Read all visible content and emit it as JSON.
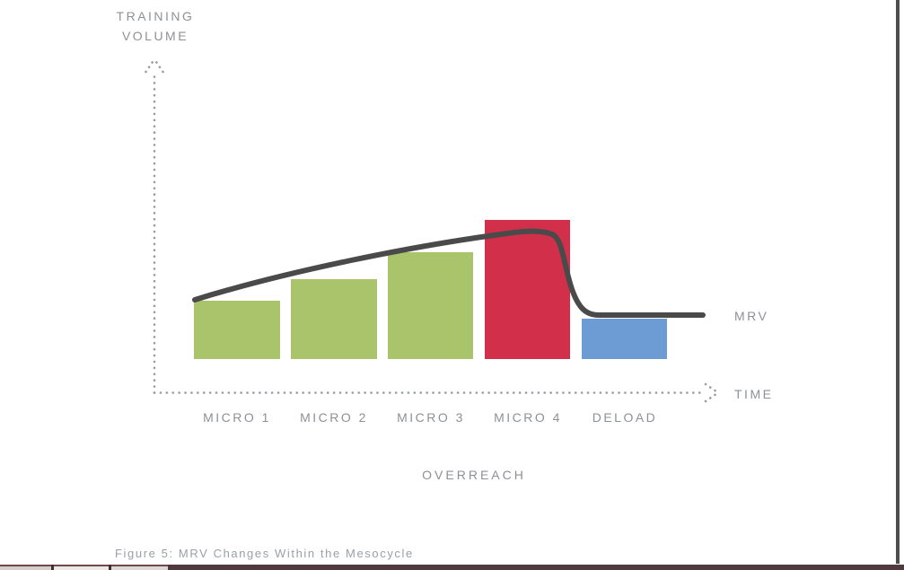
{
  "page": {
    "background": "#ffffff",
    "right_border_color": "#4d4d4d",
    "bottom_strip": {
      "line_color": "#6f474c",
      "dark_color": "#503a3e",
      "segment_colors": [
        "#d3cecb",
        "#eae7e4",
        "#dcd7d4"
      ]
    }
  },
  "figure": {
    "y_axis_label": [
      "TRAINING",
      "VOLUME"
    ],
    "x_axis_label": "TIME",
    "mrv_label": "MRV",
    "overreach_label": "OVERREACH",
    "caption": "Figure 5: MRV Changes Within the Mesocycle",
    "text_color": "#8d9196",
    "caption_color": "#9aa0a5",
    "axis_dot_color": "#999ea3",
    "curve_color": "#4a4a4a"
  },
  "chart_data": {
    "type": "bar",
    "title": "MRV Changes Within the Mesocycle",
    "xlabel": "TIME",
    "ylabel": "TRAINING VOLUME",
    "categories": [
      "MICRO 1",
      "MICRO 2",
      "MICRO 3",
      "MICRO 4",
      "DELOAD"
    ],
    "values": [
      65,
      89,
      119,
      155,
      45
    ],
    "value_unit": "relative training volume (axes unlabeled, qualitative)",
    "bar_colors": [
      "#a9c46a",
      "#a9c46a",
      "#a9c46a",
      "#d2304a",
      "#6d9bd3"
    ],
    "grid": false,
    "legend": "none",
    "annotations": [
      "OVERREACH label centered below the x-axis categories",
      "MRV label marks the flat right end of the overlay curve"
    ],
    "line_overlay": {
      "label": "MRV",
      "color": "#4a4a4a",
      "description": "Curve rises from the top-left of MICRO 1 across MICRO 2 and MICRO 3, peaks over the red MICRO 4 overreach bar, then drops sharply to a flat MRV level that sits on top of the DELOAD bar",
      "relative_points_x_category_y_value": [
        [
          0,
          66
        ],
        [
          1,
          90
        ],
        [
          2,
          119
        ],
        [
          3,
          140
        ],
        [
          3.7,
          141
        ],
        [
          4,
          49
        ],
        [
          4.8,
          49
        ]
      ]
    }
  }
}
